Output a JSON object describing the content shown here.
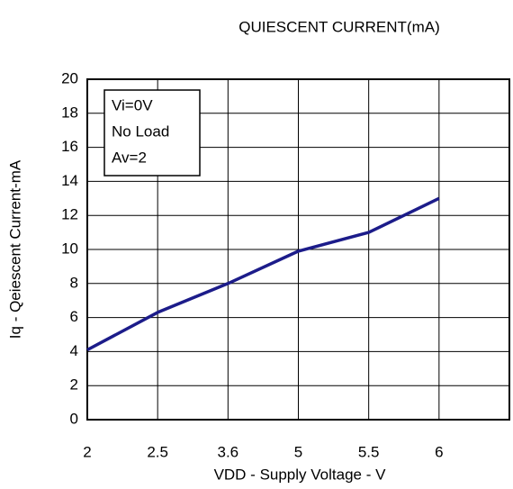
{
  "chart_data": {
    "type": "line",
    "title": "QUIESCENT CURRENT(mA)",
    "x_label": "VDD - Supply Voltage - V",
    "y_label": "Iq - Qeiescent Current-mA",
    "annotations": [
      "Vi=0V",
      "No Load",
      "Av=2"
    ],
    "categories": [
      "2",
      "2.5",
      "3.6",
      "5",
      "5.5",
      "6",
      null
    ],
    "series": [
      {
        "name": "Iq",
        "color": "#1c1c8a",
        "values": [
          4.1,
          6.3,
          8.0,
          9.9,
          11.0,
          13.0,
          null
        ]
      }
    ],
    "ylim": [
      0,
      20
    ],
    "yticks": [
      0,
      2,
      4,
      6,
      8,
      10,
      12,
      14,
      16,
      18,
      20
    ],
    "grid": true
  }
}
